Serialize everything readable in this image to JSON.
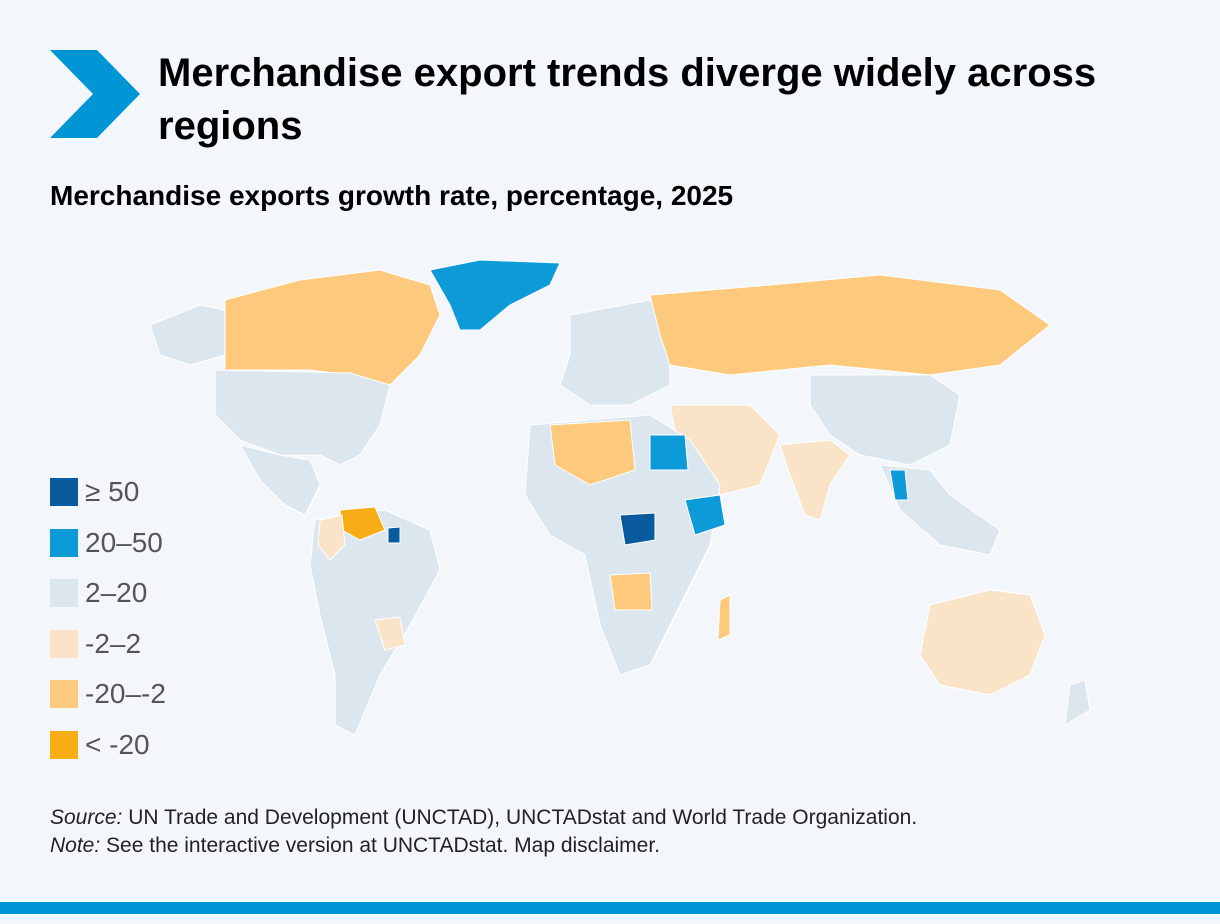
{
  "colors": {
    "brand_blue": "#0096d6",
    "background": "#f3f7fb",
    "ocean": "#f3f7fb",
    "border": "#ffffff"
  },
  "header": {
    "title": "Merchandise export trends diverge widely across regions",
    "subtitle": "Merchandise exports growth rate, percentage, 2025"
  },
  "legend": {
    "items": [
      {
        "label": "≥ 50",
        "color": "#0a5a9e"
      },
      {
        "label": "20–50",
        "color": "#0c9ad8"
      },
      {
        "label": "2–20",
        "color": "#dce6ef"
      },
      {
        "label": "-2–2",
        "color": "#f9e4c8"
      },
      {
        "label": "-20–-2",
        "color": "#fdc97c"
      },
      {
        "label": "< -20",
        "color": "#f8ad17"
      }
    ]
  },
  "map_regions": [
    {
      "name": "north-america",
      "category": "2–20"
    },
    {
      "name": "canada",
      "category": "-20–-2"
    },
    {
      "name": "alaska",
      "category": "2–20"
    },
    {
      "name": "greenland",
      "category": "20–50"
    },
    {
      "name": "south-america",
      "category": "2–20"
    },
    {
      "name": "venezuela",
      "category": "< -20"
    },
    {
      "name": "colombia",
      "category": "-2–2"
    },
    {
      "name": "bolivia",
      "category": "-2–2"
    },
    {
      "name": "europe",
      "category": "2–20"
    },
    {
      "name": "russia",
      "category": "-20–-2"
    },
    {
      "name": "africa",
      "category": "2–20"
    },
    {
      "name": "egypt",
      "category": "20–50"
    },
    {
      "name": "ethiopia",
      "category": "20–50"
    },
    {
      "name": "middle-east",
      "category": "-2–2"
    },
    {
      "name": "india",
      "category": "-2–2"
    },
    {
      "name": "china",
      "category": "2–20"
    },
    {
      "name": "southeast-asia",
      "category": "2–20"
    },
    {
      "name": "australia",
      "category": "-2–2"
    },
    {
      "name": "madagascar",
      "category": "-20–-2"
    }
  ],
  "footer": {
    "source_label": "Source:",
    "source_text": " UN Trade and Development (UNCTAD), UNCTADstat and World Trade Organization.",
    "note_label": "Note:",
    "note_text": " See the interactive version at UNCTADstat. Map disclaimer."
  }
}
